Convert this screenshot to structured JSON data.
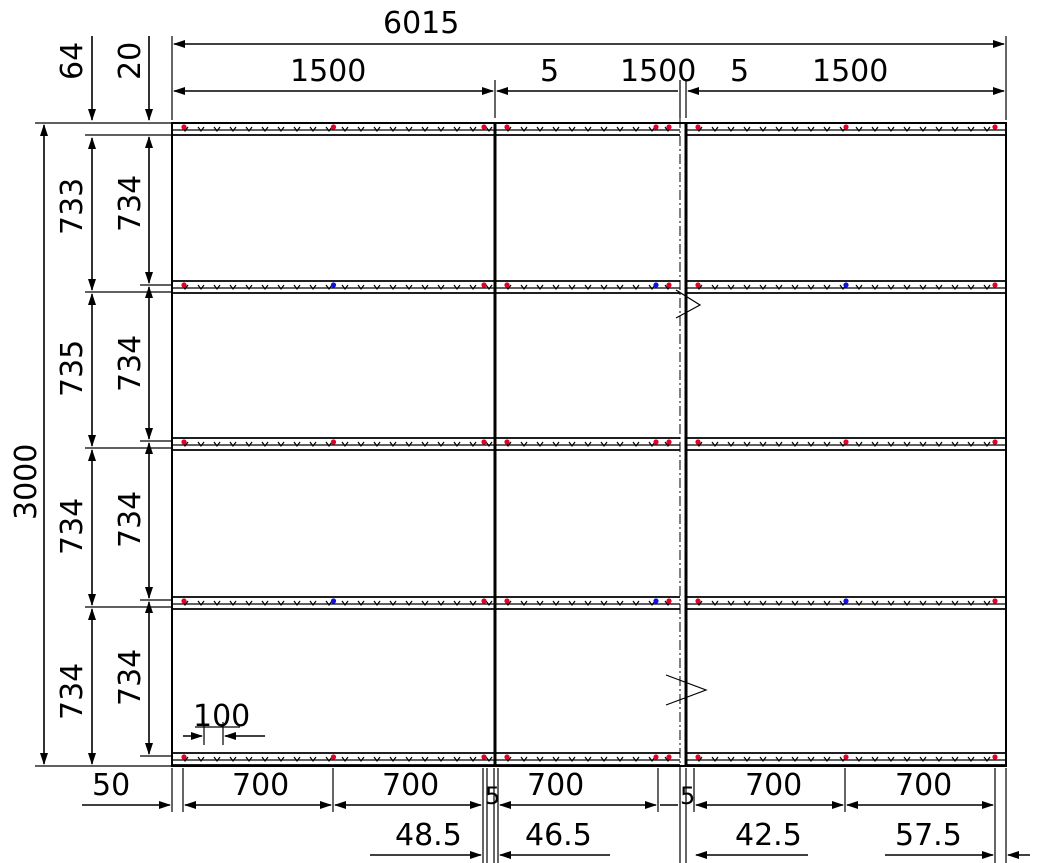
{
  "drawing": {
    "overall_width": "6015",
    "overall_height": "3000",
    "panel_widths": [
      "1500",
      "1500",
      "1500"
    ],
    "panel_gaps": [
      "5",
      "5"
    ],
    "top_offsets": [
      "64",
      "20"
    ],
    "left_spacing_outer": [
      "733",
      "735",
      "734",
      "734"
    ],
    "left_spacing_inner": [
      "734",
      "734",
      "734",
      "734"
    ],
    "notch_detail": "100",
    "bottom_edge": "50",
    "bottom_spacing": [
      "700",
      "700",
      "700",
      "700",
      "700"
    ],
    "bottom_gap_labels": [
      "5",
      "5"
    ],
    "bottom_offsets": [
      "48.5",
      "46.5",
      "42.5",
      "57.5"
    ],
    "colors": {
      "line": "#000000",
      "marker_red": "#e0002a",
      "marker_blue": "#1010e0"
    }
  }
}
